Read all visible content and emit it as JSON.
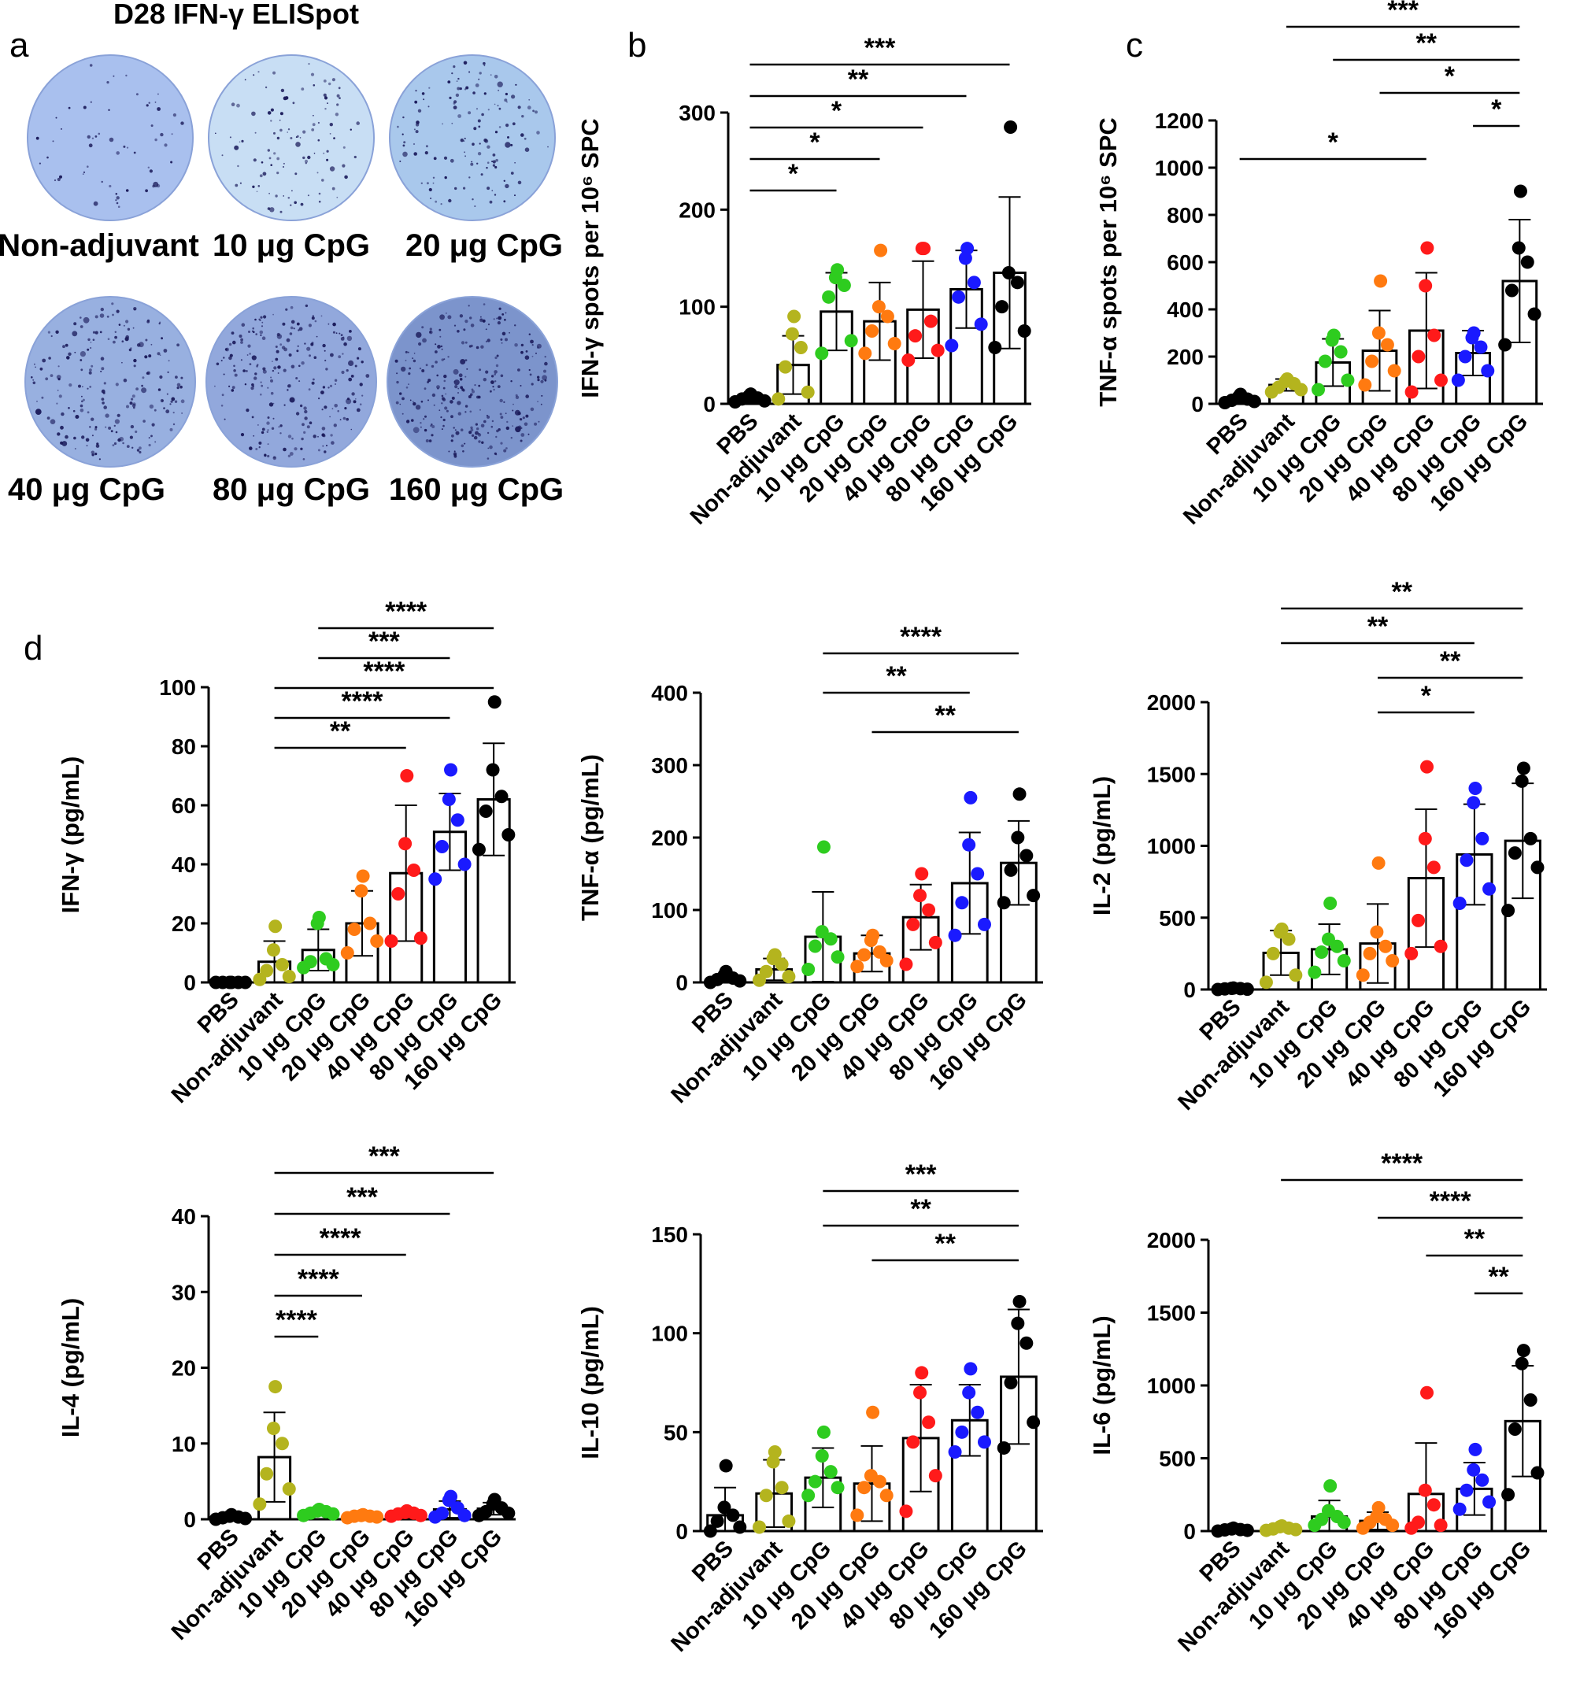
{
  "figure_title": "D28 IFN-γ ELISpot",
  "panel_letters": {
    "a": "a",
    "b": "b",
    "c": "c",
    "d": "d"
  },
  "elispot_plates": [
    {
      "label": "Non-adjuvant",
      "density": 0.15,
      "tint": "#a9c0ee"
    },
    {
      "label": "10 μg CpG",
      "density": 0.35,
      "tint": "#c8def4"
    },
    {
      "label": "20 μg CpG",
      "density": 0.45,
      "tint": "#a9c8ec"
    },
    {
      "label": "40 μg CpG",
      "density": 0.7,
      "tint": "#98b0e0"
    },
    {
      "label": "80 μg CpG",
      "density": 0.85,
      "tint": "#92a8dc"
    },
    {
      "label": "160 μg CpG",
      "density": 1.0,
      "tint": "#7c94cc"
    }
  ],
  "colors": {
    "PBS": "#000000",
    "Non-adjuvant": "#b4b41e",
    "10 μg CpG": "#2ecc1f",
    "20 μg CpG": "#ff7a10",
    "40 μg CpG": "#ff1a1a",
    "80 μg CpG": "#1a1aff",
    "160 μg CpG": "#000000"
  },
  "chart_data": [
    {
      "id": "b",
      "type": "bar",
      "ylabel": "IFN-γ spots per 10⁶ SPC",
      "ylim": [
        0,
        300
      ],
      "yticks": [
        0,
        100,
        200,
        300
      ],
      "categories": [
        "PBS",
        "Non-adjuvant",
        "10 μg CpG",
        "20 μg CpG",
        "40 μg CpG",
        "80 μg CpG",
        "160 μg CpG"
      ],
      "values": [
        5,
        40,
        95,
        85,
        97,
        118,
        135
      ],
      "errors": [
        3,
        30,
        40,
        40,
        50,
        40,
        78
      ],
      "points": [
        [
          2,
          3,
          5,
          6,
          8,
          10
        ],
        [
          5,
          12,
          38,
          58,
          72,
          90
        ],
        [
          52,
          65,
          110,
          122,
          130,
          138
        ],
        [
          52,
          62,
          75,
          90,
          100,
          158
        ],
        [
          45,
          55,
          70,
          85,
          160,
          160
        ],
        [
          60,
          82,
          110,
          125,
          150,
          160
        ],
        [
          58,
          75,
          100,
          125,
          135,
          285
        ]
      ],
      "significance": [
        {
          "from": 0,
          "to": 2,
          "label": "*"
        },
        {
          "from": 0,
          "to": 3,
          "label": "*"
        },
        {
          "from": 0,
          "to": 4,
          "label": "*"
        },
        {
          "from": 0,
          "to": 5,
          "label": "**"
        },
        {
          "from": 0,
          "to": 6,
          "label": "***"
        }
      ]
    },
    {
      "id": "c",
      "type": "bar",
      "ylabel": "TNF-α spots per 10⁶ SPC",
      "ylim": [
        0,
        1200
      ],
      "yticks": [
        0,
        200,
        400,
        600,
        800,
        1000,
        1200
      ],
      "categories": [
        "PBS",
        "Non-adjuvant",
        "10 μg CpG",
        "20 μg CpG",
        "40 μg CpG",
        "80 μg CpG",
        "160 μg CpG"
      ],
      "values": [
        20,
        80,
        175,
        225,
        310,
        215,
        520
      ],
      "errors": [
        15,
        25,
        100,
        170,
        245,
        95,
        260
      ],
      "points": [
        [
          5,
          10,
          15,
          20,
          30,
          40
        ],
        [
          50,
          60,
          70,
          85,
          95,
          105
        ],
        [
          60,
          100,
          180,
          220,
          270,
          290
        ],
        [
          80,
          140,
          180,
          250,
          300,
          520
        ],
        [
          50,
          100,
          200,
          290,
          500,
          660
        ],
        [
          100,
          140,
          200,
          240,
          280,
          300
        ],
        [
          250,
          380,
          480,
          600,
          660,
          900
        ]
      ],
      "significance": [
        {
          "from": 0,
          "to": 4,
          "label": "*"
        },
        {
          "from": 5,
          "to": 6,
          "label": "*"
        },
        {
          "from": 3,
          "to": 6,
          "label": "*"
        },
        {
          "from": 2,
          "to": 6,
          "label": "**"
        },
        {
          "from": 1,
          "to": 6,
          "label": "***"
        }
      ]
    },
    {
      "id": "d1",
      "type": "bar",
      "ylabel": "IFN-γ (pg/mL)",
      "ylim": [
        0,
        100
      ],
      "yticks": [
        0,
        20,
        40,
        60,
        80,
        100
      ],
      "categories": [
        "PBS",
        "Non-adjuvant",
        "10 μg CpG",
        "20 μg CpG",
        "40 μg CpG",
        "80 μg CpG",
        "160 μg CpG"
      ],
      "values": [
        0.3,
        7,
        11,
        20,
        37,
        51,
        62
      ],
      "errors": [
        0.3,
        7,
        7,
        11,
        23,
        13,
        19
      ],
      "points": [
        [
          0,
          0,
          0,
          0,
          0,
          0
        ],
        [
          1,
          2,
          4,
          6,
          11,
          19
        ],
        [
          5,
          6,
          7,
          8,
          20,
          22
        ],
        [
          10,
          14,
          18,
          20,
          31,
          36
        ],
        [
          14,
          15,
          30,
          38,
          47,
          70
        ],
        [
          35,
          40,
          46,
          55,
          62,
          72
        ],
        [
          45,
          50,
          58,
          63,
          72,
          95
        ]
      ],
      "significance": [
        {
          "from": 1,
          "to": 4,
          "label": "**"
        },
        {
          "from": 1,
          "to": 5,
          "label": "****"
        },
        {
          "from": 1,
          "to": 6,
          "label": "****"
        },
        {
          "from": 2,
          "to": 5,
          "label": "***"
        },
        {
          "from": 2,
          "to": 6,
          "label": "****"
        }
      ]
    },
    {
      "id": "d2",
      "type": "bar",
      "ylabel": "TNF-α (pg/mL)",
      "ylim": [
        0,
        400
      ],
      "yticks": [
        0,
        100,
        200,
        300,
        400
      ],
      "categories": [
        "PBS",
        "Non-adjuvant",
        "10 μg CpG",
        "20 μg CpG",
        "40 μg CpG",
        "80 μg CpG",
        "160 μg CpG"
      ],
      "values": [
        5,
        18,
        63,
        40,
        90,
        137,
        165
      ],
      "errors": [
        5,
        15,
        62,
        25,
        45,
        70,
        58
      ],
      "points": [
        [
          0,
          2,
          4,
          6,
          10,
          15
        ],
        [
          3,
          8,
          15,
          25,
          33,
          38
        ],
        [
          18,
          35,
          50,
          60,
          70,
          187
        ],
        [
          22,
          30,
          38,
          42,
          58,
          65
        ],
        [
          25,
          55,
          80,
          100,
          120,
          150
        ],
        [
          65,
          80,
          110,
          150,
          190,
          255
        ],
        [
          110,
          120,
          155,
          175,
          200,
          260
        ]
      ],
      "significance": [
        {
          "from": 3,
          "to": 6,
          "label": "**"
        },
        {
          "from": 2,
          "to": 5,
          "label": "**"
        },
        {
          "from": 2,
          "to": 6,
          "label": "****"
        }
      ]
    },
    {
      "id": "d3",
      "type": "bar",
      "ylabel": "IL-2 (pg/mL)",
      "ylim": [
        0,
        2000
      ],
      "yticks": [
        0,
        500,
        1000,
        1500,
        2000
      ],
      "categories": [
        "PBS",
        "Non-adjuvant",
        "10 μg CpG",
        "20 μg CpG",
        "40 μg CpG",
        "80 μg CpG",
        "160 μg CpG"
      ],
      "values": [
        5,
        255,
        280,
        320,
        775,
        940,
        1035
      ],
      "errors": [
        5,
        155,
        175,
        275,
        480,
        350,
        400
      ],
      "points": [
        [
          0,
          2,
          4,
          6,
          8,
          10
        ],
        [
          50,
          100,
          250,
          350,
          400,
          420
        ],
        [
          120,
          200,
          260,
          300,
          350,
          600
        ],
        [
          100,
          200,
          250,
          300,
          400,
          880
        ],
        [
          250,
          300,
          480,
          850,
          1050,
          1550
        ],
        [
          600,
          700,
          900,
          1050,
          1300,
          1400
        ],
        [
          550,
          850,
          950,
          1050,
          1450,
          1540
        ]
      ],
      "significance": [
        {
          "from": 3,
          "to": 5,
          "label": "*"
        },
        {
          "from": 3,
          "to": 6,
          "label": "**"
        },
        {
          "from": 1,
          "to": 5,
          "label": "**"
        },
        {
          "from": 1,
          "to": 6,
          "label": "**"
        }
      ]
    },
    {
      "id": "d4",
      "type": "bar",
      "ylabel": "IL-4 (pg/mL)",
      "ylim": [
        0,
        40
      ],
      "yticks": [
        0,
        10,
        20,
        30,
        40
      ],
      "categories": [
        "PBS",
        "Non-adjuvant",
        "10 μg CpG",
        "20 μg CpG",
        "40 μg CpG",
        "80 μg CpG",
        "160 μg CpG"
      ],
      "values": [
        0.3,
        8.2,
        0.9,
        0.4,
        0.7,
        1.3,
        1.4
      ],
      "errors": [
        0.3,
        5.9,
        0.3,
        0.2,
        0.3,
        1.1,
        0.8
      ],
      "points": [
        [
          0,
          0.1,
          0.2,
          0.3,
          0.4,
          0.6
        ],
        [
          2,
          4,
          6,
          10,
          12,
          17.5
        ],
        [
          0.5,
          0.7,
          0.8,
          1.0,
          1.1,
          1.3
        ],
        [
          0.2,
          0.3,
          0.4,
          0.4,
          0.5,
          0.6
        ],
        [
          0.4,
          0.5,
          0.7,
          0.8,
          0.9,
          1.1
        ],
        [
          0.3,
          0.5,
          0.8,
          1.5,
          2.5,
          3.0
        ],
        [
          0.5,
          0.8,
          1.0,
          1.5,
          2.0,
          2.6
        ]
      ],
      "significance": [
        {
          "from": 1,
          "to": 2,
          "label": "****"
        },
        {
          "from": 1,
          "to": 3,
          "label": "****"
        },
        {
          "from": 1,
          "to": 4,
          "label": "****"
        },
        {
          "from": 1,
          "to": 5,
          "label": "***"
        },
        {
          "from": 1,
          "to": 6,
          "label": "***"
        }
      ]
    },
    {
      "id": "d5",
      "type": "bar",
      "ylabel": "IL-10 (pg/mL)",
      "ylim": [
        0,
        150
      ],
      "yticks": [
        0,
        50,
        100,
        150
      ],
      "categories": [
        "PBS",
        "Non-adjuvant",
        "10 μg CpG",
        "20 μg CpG",
        "40 μg CpG",
        "80 μg CpG",
        "160 μg CpG"
      ],
      "values": [
        8,
        19,
        27,
        24,
        47,
        56,
        78
      ],
      "errors": [
        14,
        17,
        15,
        19,
        27,
        18,
        34
      ],
      "points": [
        [
          0,
          2,
          5,
          8,
          12,
          33
        ],
        [
          2,
          5,
          18,
          22,
          35,
          40
        ],
        [
          18,
          22,
          25,
          30,
          38,
          50
        ],
        [
          8,
          18,
          22,
          25,
          28,
          60
        ],
        [
          10,
          28,
          45,
          55,
          70,
          80
        ],
        [
          40,
          45,
          50,
          60,
          70,
          82
        ],
        [
          42,
          55,
          75,
          95,
          105,
          116
        ]
      ],
      "significance": [
        {
          "from": 3,
          "to": 6,
          "label": "**"
        },
        {
          "from": 2,
          "to": 6,
          "label": "**"
        },
        {
          "from": 2,
          "to": 6,
          "label": "***"
        }
      ]
    },
    {
      "id": "d6",
      "type": "bar",
      "ylabel": "IL-6 (pg/mL)",
      "ylim": [
        0,
        2000
      ],
      "yticks": [
        0,
        500,
        1000,
        1500,
        2000
      ],
      "categories": [
        "PBS",
        "Non-adjuvant",
        "10 μg CpG",
        "20 μg CpG",
        "40 μg CpG",
        "80 μg CpG",
        "160 μg CpG"
      ],
      "values": [
        10,
        20,
        100,
        70,
        255,
        290,
        755
      ],
      "errors": [
        10,
        15,
        110,
        60,
        350,
        180,
        380
      ],
      "points": [
        [
          0,
          5,
          8,
          10,
          15,
          20
        ],
        [
          5,
          10,
          15,
          20,
          30,
          35
        ],
        [
          40,
          60,
          80,
          100,
          140,
          310
        ],
        [
          20,
          40,
          60,
          80,
          100,
          160
        ],
        [
          20,
          40,
          60,
          180,
          280,
          950
        ],
        [
          150,
          200,
          280,
          350,
          420,
          560
        ],
        [
          250,
          400,
          700,
          900,
          1150,
          1240
        ]
      ],
      "significance": [
        {
          "from": 5,
          "to": 6,
          "label": "**"
        },
        {
          "from": 4,
          "to": 6,
          "label": "**"
        },
        {
          "from": 3,
          "to": 6,
          "label": "****"
        },
        {
          "from": 1,
          "to": 6,
          "label": "****"
        }
      ]
    }
  ]
}
